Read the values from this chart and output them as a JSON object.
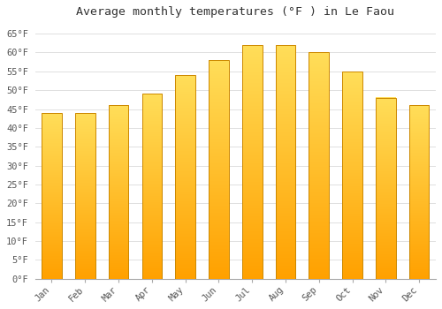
{
  "title": "Average monthly temperatures (°F ) in Le Faou",
  "months": [
    "Jan",
    "Feb",
    "Mar",
    "Apr",
    "May",
    "Jun",
    "Jul",
    "Aug",
    "Sep",
    "Oct",
    "Nov",
    "Dec"
  ],
  "values": [
    44,
    44,
    46,
    49,
    54,
    58,
    62,
    62,
    60,
    55,
    48,
    46
  ],
  "bar_color_top": "#FFCC44",
  "bar_color_mid": "#FFDD88",
  "bar_color_bottom": "#FFA000",
  "bar_edge_color": "#CC8800",
  "ylim": [
    0,
    68
  ],
  "yticks": [
    0,
    5,
    10,
    15,
    20,
    25,
    30,
    35,
    40,
    45,
    50,
    55,
    60,
    65
  ],
  "ylabel_suffix": "°F",
  "grid_color": "#e0e0e0",
  "background_color": "#ffffff",
  "title_fontsize": 9.5,
  "tick_fontsize": 7.5,
  "font_family": "monospace"
}
